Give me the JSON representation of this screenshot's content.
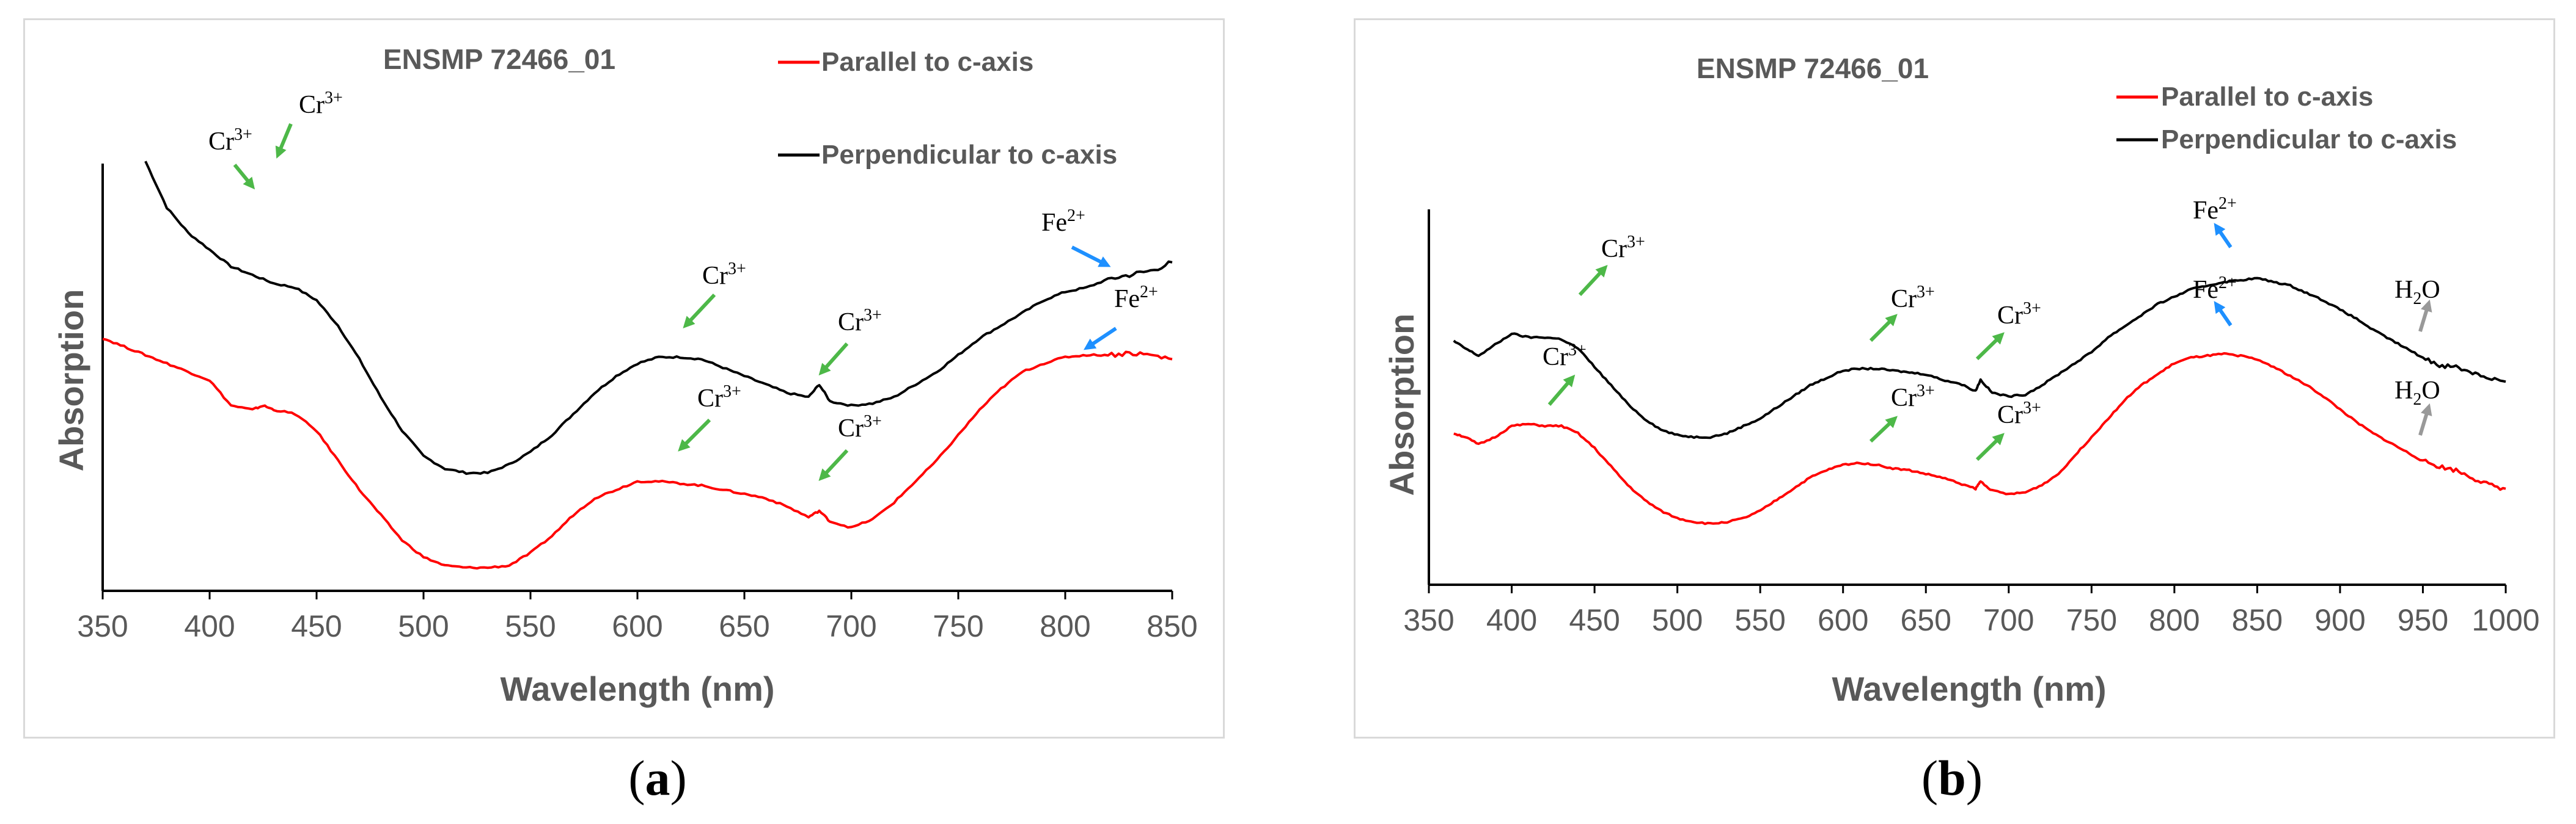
{
  "chart_data": [
    {
      "type": "line",
      "panel_label": "a",
      "title": "ENSMP 72466_01",
      "xlabel": "Wavelength (nm)",
      "ylabel": "Absorption",
      "xlim": [
        350,
        850
      ],
      "ylim": [
        0,
        1
      ],
      "x_ticks": [
        350,
        400,
        450,
        500,
        550,
        600,
        650,
        700,
        750,
        800,
        850
      ],
      "y_ticks_shown": false,
      "series": [
        {
          "name": "Perpendicular to c-axis",
          "color": "#000000",
          "x": [
            370,
            380,
            390,
            400,
            410,
            420,
            430,
            440,
            450,
            460,
            470,
            480,
            490,
            500,
            510,
            520,
            530,
            540,
            550,
            560,
            570,
            580,
            590,
            600,
            610,
            620,
            630,
            640,
            650,
            660,
            670,
            680,
            685,
            690,
            700,
            710,
            720,
            730,
            740,
            750,
            760,
            770,
            780,
            790,
            800,
            810,
            820,
            830,
            840,
            850
          ],
          "y": [
            1.02,
            0.91,
            0.85,
            0.81,
            0.77,
            0.75,
            0.73,
            0.72,
            0.69,
            0.63,
            0.55,
            0.46,
            0.38,
            0.32,
            0.29,
            0.28,
            0.28,
            0.3,
            0.33,
            0.37,
            0.42,
            0.47,
            0.51,
            0.54,
            0.555,
            0.555,
            0.55,
            0.53,
            0.51,
            0.49,
            0.47,
            0.46,
            0.49,
            0.45,
            0.44,
            0.445,
            0.46,
            0.49,
            0.52,
            0.56,
            0.6,
            0.63,
            0.66,
            0.69,
            0.71,
            0.72,
            0.74,
            0.75,
            0.76,
            0.78
          ]
        },
        {
          "name": "Parallel to c-axis",
          "color": "#ff0000",
          "x": [
            350,
            360,
            370,
            380,
            390,
            400,
            410,
            420,
            425,
            430,
            440,
            450,
            460,
            470,
            480,
            490,
            500,
            510,
            520,
            530,
            540,
            550,
            560,
            570,
            580,
            590,
            600,
            610,
            620,
            630,
            640,
            650,
            660,
            670,
            680,
            685,
            690,
            700,
            710,
            720,
            730,
            740,
            750,
            760,
            770,
            780,
            790,
            800,
            810,
            820,
            830,
            840,
            850
          ],
          "y": [
            0.6,
            0.58,
            0.56,
            0.54,
            0.52,
            0.5,
            0.44,
            0.43,
            0.44,
            0.43,
            0.42,
            0.38,
            0.31,
            0.24,
            0.18,
            0.12,
            0.08,
            0.06,
            0.055,
            0.055,
            0.06,
            0.09,
            0.13,
            0.18,
            0.22,
            0.24,
            0.26,
            0.26,
            0.255,
            0.25,
            0.24,
            0.23,
            0.22,
            0.2,
            0.175,
            0.19,
            0.165,
            0.15,
            0.17,
            0.21,
            0.26,
            0.31,
            0.37,
            0.43,
            0.48,
            0.52,
            0.54,
            0.555,
            0.56,
            0.56,
            0.565,
            0.56,
            0.55
          ]
        }
      ],
      "legend": [
        "Parallel to c-axis",
        "Perpendicular to c-axis"
      ],
      "annotations": [
        {
          "text": "Cr",
          "sup": "3+",
          "color": "#4db848",
          "note": "perpendicular ~430 nm"
        },
        {
          "text": "Cr",
          "sup": "3+",
          "color": "#4db848",
          "note": "parallel ~410 nm"
        },
        {
          "text": "Cr",
          "sup": "3+",
          "color": "#4db848",
          "note": "perpendicular ~635 nm"
        },
        {
          "text": "Cr",
          "sup": "3+",
          "color": "#4db848",
          "note": "parallel ~635 nm"
        },
        {
          "text": "Cr",
          "sup": "3+",
          "color": "#4db848",
          "note": "perpendicular ~700 nm"
        },
        {
          "text": "Cr",
          "sup": "3+",
          "color": "#4db848",
          "note": "parallel ~700 nm"
        },
        {
          "text": "Fe",
          "sup": "2+",
          "color": "#1e90ff",
          "note": "perpendicular ~810 nm"
        },
        {
          "text": "Fe",
          "sup": "2+",
          "color": "#1e90ff",
          "note": "parallel ~830 nm"
        }
      ]
    },
    {
      "type": "line",
      "panel_label": "b",
      "title": "ENSMP 72466_01",
      "xlabel": "Wavelength (nm)",
      "ylabel": "Absorption",
      "xlim": [
        350,
        1000
      ],
      "ylim": [
        0,
        1
      ],
      "x_ticks": [
        350,
        400,
        450,
        500,
        550,
        600,
        650,
        700,
        750,
        800,
        850,
        900,
        950,
        1000
      ],
      "y_ticks_shown": false,
      "series": [
        {
          "name": "Perpendicular to c-axis",
          "color": "#000000",
          "x": [
            365,
            372,
            380,
            390,
            400,
            410,
            420,
            430,
            440,
            450,
            460,
            470,
            480,
            490,
            500,
            510,
            520,
            530,
            540,
            550,
            560,
            570,
            580,
            590,
            600,
            610,
            620,
            630,
            640,
            650,
            660,
            670,
            680,
            683,
            690,
            700,
            710,
            720,
            730,
            740,
            750,
            760,
            770,
            780,
            790,
            800,
            810,
            820,
            830,
            840,
            850,
            860,
            870,
            880,
            890,
            900,
            910,
            920,
            930,
            940,
            950,
            960,
            970,
            980,
            990,
            1000
          ],
          "y": [
            0.66,
            0.64,
            0.62,
            0.65,
            0.68,
            0.67,
            0.67,
            0.665,
            0.64,
            0.59,
            0.54,
            0.49,
            0.45,
            0.42,
            0.405,
            0.4,
            0.4,
            0.41,
            0.43,
            0.45,
            0.48,
            0.51,
            0.54,
            0.56,
            0.58,
            0.585,
            0.585,
            0.58,
            0.575,
            0.57,
            0.555,
            0.545,
            0.525,
            0.555,
            0.52,
            0.51,
            0.515,
            0.54,
            0.57,
            0.6,
            0.63,
            0.67,
            0.7,
            0.73,
            0.76,
            0.78,
            0.8,
            0.81,
            0.82,
            0.825,
            0.83,
            0.82,
            0.81,
            0.79,
            0.77,
            0.745,
            0.72,
            0.69,
            0.665,
            0.64,
            0.615,
            0.595,
            0.59,
            0.575,
            0.56,
            0.55
          ]
        },
        {
          "name": "Parallel to c-axis",
          "color": "#ff0000",
          "x": [
            365,
            372,
            380,
            390,
            400,
            410,
            420,
            430,
            440,
            450,
            460,
            470,
            480,
            490,
            500,
            510,
            520,
            530,
            540,
            550,
            560,
            570,
            580,
            590,
            600,
            610,
            620,
            630,
            640,
            650,
            660,
            670,
            680,
            683,
            690,
            700,
            710,
            720,
            730,
            740,
            750,
            760,
            770,
            780,
            790,
            800,
            810,
            820,
            830,
            840,
            850,
            860,
            870,
            880,
            890,
            900,
            910,
            920,
            930,
            940,
            950,
            960,
            970,
            980,
            990,
            1000
          ],
          "y": [
            0.41,
            0.4,
            0.38,
            0.4,
            0.43,
            0.435,
            0.43,
            0.43,
            0.41,
            0.37,
            0.32,
            0.27,
            0.23,
            0.2,
            0.18,
            0.17,
            0.165,
            0.17,
            0.18,
            0.2,
            0.23,
            0.26,
            0.29,
            0.31,
            0.325,
            0.33,
            0.325,
            0.315,
            0.31,
            0.3,
            0.29,
            0.275,
            0.26,
            0.28,
            0.255,
            0.245,
            0.25,
            0.27,
            0.3,
            0.35,
            0.4,
            0.45,
            0.5,
            0.54,
            0.57,
            0.6,
            0.615,
            0.62,
            0.625,
            0.62,
            0.61,
            0.59,
            0.565,
            0.54,
            0.51,
            0.475,
            0.44,
            0.41,
            0.385,
            0.36,
            0.335,
            0.32,
            0.31,
            0.29,
            0.27,
            0.26
          ]
        }
      ],
      "legend": [
        "Parallel to c-axis",
        "Perpendicular to c-axis"
      ],
      "annotations": [
        {
          "text": "Cr",
          "sup": "3+",
          "color": "#4db848",
          "note": "perpendicular ~425 nm"
        },
        {
          "text": "Cr",
          "sup": "3+",
          "color": "#4db848",
          "note": "parallel ~420 nm"
        },
        {
          "text": "Cr",
          "sup": "3+",
          "color": "#4db848",
          "note": "perpendicular ~630 nm"
        },
        {
          "text": "Cr",
          "sup": "3+",
          "color": "#4db848",
          "note": "parallel ~630 nm"
        },
        {
          "text": "Cr",
          "sup": "3+",
          "color": "#4db848",
          "note": "perpendicular ~700 nm"
        },
        {
          "text": "Cr",
          "sup": "3+",
          "color": "#4db848",
          "note": "parallel ~700 nm"
        },
        {
          "text": "Fe",
          "sup": "2+",
          "color": "#1e90ff",
          "note": "perpendicular ~840 nm"
        },
        {
          "text": "Fe",
          "sup": "2+",
          "color": "#1e90ff",
          "note": "parallel ~840 nm"
        },
        {
          "text": "H",
          "sub": "2",
          "tail": "O",
          "color": "#999999",
          "note": "perpendicular ~960 nm"
        },
        {
          "text": "H",
          "sub": "2",
          "tail": "O",
          "color": "#999999",
          "note": "parallel ~960 nm"
        }
      ]
    }
  ],
  "captions": [
    "a",
    "b"
  ]
}
